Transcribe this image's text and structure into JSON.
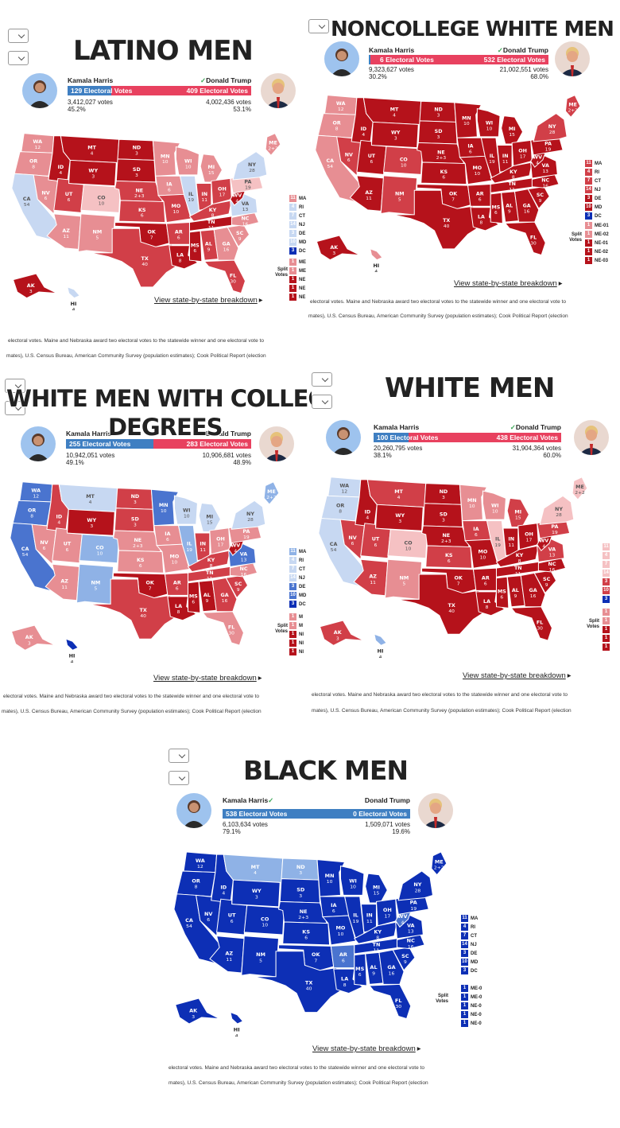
{
  "candidates": {
    "harris": "Kamala Harris",
    "trump": "Donald Trump"
  },
  "link_text": "View state-by-state breakdown",
  "footnote1": "electoral votes. Maine and Nebraska award two electoral votes to the statewide winner and one electoral vote to",
  "footnote2": "mates), U.S. Census Bureau, American Community Survey (population estimates); Cook Political Report (election",
  "split_label": "Split Votes",
  "colors": {
    "safe_r": "#b5121b",
    "likely_r": "#d13f48",
    "lean_r": "#e78e93",
    "tilt_r": "#f5c1c3",
    "tilt_d": "#c7d8f2",
    "lean_d": "#8fb2e6",
    "likely_d": "#4a74cf",
    "safe_d": "#0d2fb5"
  },
  "states": [
    {
      "ab": "WA",
      "ev": "12"
    },
    {
      "ab": "OR",
      "ev": "8"
    },
    {
      "ab": "CA",
      "ev": "54"
    },
    {
      "ab": "NV",
      "ev": "6"
    },
    {
      "ab": "ID",
      "ev": "4"
    },
    {
      "ab": "MT",
      "ev": "4"
    },
    {
      "ab": "WY",
      "ev": "3"
    },
    {
      "ab": "UT",
      "ev": "6"
    },
    {
      "ab": "AZ",
      "ev": "11"
    },
    {
      "ab": "CO",
      "ev": "10"
    },
    {
      "ab": "NM",
      "ev": "5"
    },
    {
      "ab": "ND",
      "ev": "3"
    },
    {
      "ab": "SD",
      "ev": "3"
    },
    {
      "ab": "NE",
      "ev": "2+3"
    },
    {
      "ab": "KS",
      "ev": "6"
    },
    {
      "ab": "OK",
      "ev": "7"
    },
    {
      "ab": "TX",
      "ev": "40"
    },
    {
      "ab": "MN",
      "ev": "10"
    },
    {
      "ab": "IA",
      "ev": "6"
    },
    {
      "ab": "MO",
      "ev": "10"
    },
    {
      "ab": "AR",
      "ev": "6"
    },
    {
      "ab": "LA",
      "ev": "8"
    },
    {
      "ab": "WI",
      "ev": "10"
    },
    {
      "ab": "IL",
      "ev": "19"
    },
    {
      "ab": "MI",
      "ev": "15"
    },
    {
      "ab": "IN",
      "ev": "11"
    },
    {
      "ab": "OH",
      "ev": "17"
    },
    {
      "ab": "KY",
      "ev": "8"
    },
    {
      "ab": "TN",
      "ev": "11"
    },
    {
      "ab": "MS",
      "ev": "6"
    },
    {
      "ab": "AL",
      "ev": "9"
    },
    {
      "ab": "GA",
      "ev": "16"
    },
    {
      "ab": "FL",
      "ev": "30"
    },
    {
      "ab": "SC",
      "ev": "9"
    },
    {
      "ab": "NC",
      "ev": "16"
    },
    {
      "ab": "VA",
      "ev": "13"
    },
    {
      "ab": "WV",
      "ev": "4"
    },
    {
      "ab": "PA",
      "ev": "19"
    },
    {
      "ab": "NY",
      "ev": "28"
    },
    {
      "ab": "ME",
      "ev": "2+2"
    },
    {
      "ab": "AK",
      "ev": "3"
    },
    {
      "ab": "HI",
      "ev": "4"
    }
  ],
  "panels": [
    {
      "title": "LATINO MEN",
      "harris_ev": "129 Electoral Votes",
      "trump_ev": "409 Electoral Votes",
      "harris_votes": "3,412,027 votes",
      "harris_pct": "45.2%",
      "trump_votes": "4,002,436 votes",
      "trump_pct": "53.1%",
      "harris_share": 0.24,
      "winner": "trump",
      "legend": [
        {
          "v": "11",
          "l": "MA"
        },
        {
          "v": "4",
          "l": "RI"
        },
        {
          "v": "7",
          "l": "CT"
        },
        {
          "v": "14",
          "l": "NJ"
        },
        {
          "v": "3",
          "l": "DE"
        },
        {
          "v": "10",
          "l": "MD"
        },
        {
          "v": "3",
          "l": "DC"
        }
      ],
      "split": [
        {
          "v": "1",
          "l": "ME"
        },
        {
          "v": "1",
          "l": "ME"
        },
        {
          "v": "1",
          "l": "NE"
        },
        {
          "v": "1",
          "l": "NE"
        },
        {
          "v": "1",
          "l": "NE"
        }
      ],
      "fills": {
        "WA": "lean_r",
        "OR": "lean_r",
        "CA": "tilt_d",
        "NV": "lean_r",
        "ID": "safe_r",
        "MT": "safe_r",
        "WY": "safe_r",
        "UT": "likely_r",
        "AZ": "lean_r",
        "CO": "tilt_r",
        "NM": "lean_r",
        "ND": "safe_r",
        "SD": "safe_r",
        "NE": "likely_r",
        "KS": "likely_r",
        "OK": "safe_r",
        "TX": "likely_r",
        "MN": "lean_r",
        "IA": "lean_r",
        "MO": "likely_r",
        "AR": "likely_r",
        "LA": "safe_r",
        "WI": "lean_r",
        "IL": "tilt_d",
        "MI": "lean_r",
        "IN": "likely_r",
        "OH": "likely_r",
        "KY": "likely_r",
        "TN": "safe_r",
        "MS": "safe_r",
        "AL": "likely_r",
        "GA": "lean_r",
        "FL": "likely_r",
        "SC": "lean_r",
        "NC": "lean_r",
        "VA": "tilt_d",
        "WV": "safe_r",
        "PA": "tilt_r",
        "NY": "tilt_d",
        "ME": "lean_r",
        "AK": "safe_r",
        "HI": "tilt_d"
      }
    },
    {
      "title": "NONCOLLEGE WHITE MEN",
      "harris_ev": "6 Electoral Votes",
      "trump_ev": "532 Electoral Votes",
      "harris_votes": "9,323,627 votes",
      "harris_pct": "30.2%",
      "trump_votes": "21,002,551 votes",
      "trump_pct": "68.0%",
      "harris_share": 0.011,
      "winner": "trump",
      "legend": [
        {
          "v": "11",
          "l": "MA"
        },
        {
          "v": "4",
          "l": "RI"
        },
        {
          "v": "7",
          "l": "CT"
        },
        {
          "v": "14",
          "l": "NJ"
        },
        {
          "v": "3",
          "l": "DE"
        },
        {
          "v": "10",
          "l": "MD"
        },
        {
          "v": "3",
          "l": "DC"
        }
      ],
      "split": [
        {
          "v": "1",
          "l": "ME-01"
        },
        {
          "v": "1",
          "l": "ME-02"
        },
        {
          "v": "1",
          "l": "NE-01"
        },
        {
          "v": "1",
          "l": "NE-02"
        },
        {
          "v": "1",
          "l": "NE-03"
        }
      ],
      "fills": {
        "WA": "lean_r",
        "OR": "lean_r",
        "CA": "lean_r",
        "NV": "likely_r",
        "ID": "safe_r",
        "MT": "safe_r",
        "WY": "safe_r",
        "UT": "safe_r",
        "AZ": "safe_r",
        "CO": "likely_r",
        "NM": "likely_r",
        "ND": "safe_r",
        "SD": "safe_r",
        "NE": "safe_r",
        "KS": "safe_r",
        "OK": "safe_r",
        "TX": "safe_r",
        "MN": "safe_r",
        "IA": "safe_r",
        "MO": "safe_r",
        "AR": "safe_r",
        "LA": "safe_r",
        "WI": "safe_r",
        "IL": "safe_r",
        "MI": "safe_r",
        "IN": "safe_r",
        "OH": "safe_r",
        "KY": "safe_r",
        "TN": "safe_r",
        "MS": "safe_r",
        "AL": "safe_r",
        "GA": "safe_r",
        "FL": "safe_r",
        "SC": "safe_r",
        "NC": "safe_r",
        "VA": "safe_r",
        "WV": "safe_r",
        "PA": "safe_r",
        "NY": "likely_r",
        "ME": "likely_r",
        "AK": "safe_r",
        "HI": "lean_r"
      }
    },
    {
      "title": "WHITE MEN WITH COLLEGE",
      "title2": "DEGREES",
      "harris_ev": "255 Electoral Votes",
      "trump_ev": "283 Electoral Votes",
      "harris_votes": "10,942,051 votes",
      "harris_pct": "49.1%",
      "trump_votes": "10,906,681 votes",
      "trump_pct": "48.9%",
      "harris_share": 0.474,
      "winner": "",
      "legend": [
        {
          "v": "11",
          "l": "MA"
        },
        {
          "v": "4",
          "l": "RI"
        },
        {
          "v": "7",
          "l": "CT"
        },
        {
          "v": "14",
          "l": "NJ"
        },
        {
          "v": "3",
          "l": "DE"
        },
        {
          "v": "10",
          "l": "MD"
        },
        {
          "v": "3",
          "l": "DC"
        }
      ],
      "split": [
        {
          "v": "1",
          "l": "M"
        },
        {
          "v": "1",
          "l": "M"
        },
        {
          "v": "1",
          "l": "NI"
        },
        {
          "v": "1",
          "l": "NI"
        },
        {
          "v": "1",
          "l": "NI"
        }
      ],
      "fills": {
        "WA": "likely_d",
        "OR": "likely_d",
        "CA": "likely_d",
        "NV": "lean_r",
        "ID": "likely_r",
        "MT": "tilt_d",
        "WY": "safe_r",
        "UT": "lean_r",
        "AZ": "lean_r",
        "CO": "lean_d",
        "NM": "lean_d",
        "ND": "likely_r",
        "SD": "likely_r",
        "NE": "lean_r",
        "KS": "lean_r",
        "OK": "safe_r",
        "TX": "likely_r",
        "MN": "likely_d",
        "IA": "lean_r",
        "MO": "lean_r",
        "AR": "likely_r",
        "LA": "safe_r",
        "WI": "tilt_d",
        "IL": "lean_d",
        "MI": "tilt_d",
        "IN": "likely_r",
        "OH": "lean_r",
        "KY": "likely_r",
        "TN": "likely_r",
        "MS": "safe_r",
        "AL": "safe_r",
        "GA": "likely_r",
        "FL": "lean_r",
        "SC": "likely_r",
        "NC": "lean_r",
        "VA": "likely_d",
        "WV": "safe_r",
        "PA": "lean_r",
        "NY": "tilt_d",
        "ME": "lean_d",
        "AK": "lean_r",
        "HI": "safe_d"
      }
    },
    {
      "title": "WHITE MEN",
      "harris_ev": "100 Electoral Votes",
      "trump_ev": "438 Electoral Votes",
      "harris_votes": "20,260,795 votes",
      "harris_pct": "38.1%",
      "trump_votes": "31,904,364 votes",
      "trump_pct": "60.0%",
      "harris_share": 0.186,
      "winner": "trump",
      "legend": [
        {
          "v": "11",
          "l": ""
        },
        {
          "v": "4",
          "l": ""
        },
        {
          "v": "7",
          "l": ""
        },
        {
          "v": "14",
          "l": ""
        },
        {
          "v": "3",
          "l": ""
        },
        {
          "v": "10",
          "l": ""
        },
        {
          "v": "3",
          "l": ""
        }
      ],
      "split": [
        {
          "v": "1",
          "l": ""
        },
        {
          "v": "1",
          "l": ""
        },
        {
          "v": "1",
          "l": ""
        },
        {
          "v": "1",
          "l": ""
        },
        {
          "v": "1",
          "l": ""
        }
      ],
      "fills": {
        "WA": "tilt_d",
        "OR": "tilt_d",
        "CA": "tilt_d",
        "NV": "likely_r",
        "ID": "safe_r",
        "MT": "likely_r",
        "WY": "safe_r",
        "UT": "likely_r",
        "AZ": "likely_r",
        "CO": "tilt_r",
        "NM": "lean_r",
        "ND": "safe_r",
        "SD": "safe_r",
        "NE": "safe_r",
        "KS": "likely_r",
        "OK": "safe_r",
        "TX": "safe_r",
        "MN": "lean_r",
        "IA": "likely_r",
        "MO": "safe_r",
        "AR": "safe_r",
        "LA": "safe_r",
        "WI": "lean_r",
        "IL": "tilt_r",
        "MI": "likely_r",
        "IN": "safe_r",
        "OH": "safe_r",
        "KY": "safe_r",
        "TN": "safe_r",
        "MS": "safe_r",
        "AL": "safe_r",
        "GA": "safe_r",
        "FL": "safe_r",
        "SC": "safe_r",
        "NC": "safe_r",
        "VA": "likely_r",
        "WV": "safe_r",
        "PA": "likely_r",
        "NY": "tilt_r",
        "ME": "tilt_r",
        "AK": "likely_r",
        "HI": "lean_d"
      }
    },
    {
      "title": "BLACK MEN",
      "harris_ev": "538 Electoral Votes",
      "trump_ev": "0 Electoral Votes",
      "harris_votes": "6,103,634 votes",
      "harris_pct": "79.1%",
      "trump_votes": "1,509,071 votes",
      "trump_pct": "19.6%",
      "harris_share": 1,
      "winner": "harris",
      "legend": [
        {
          "v": "11",
          "l": "MA"
        },
        {
          "v": "4",
          "l": "RI"
        },
        {
          "v": "7",
          "l": "CT"
        },
        {
          "v": "14",
          "l": "NJ"
        },
        {
          "v": "3",
          "l": "DE"
        },
        {
          "v": "10",
          "l": "MD"
        },
        {
          "v": "3",
          "l": "DC"
        }
      ],
      "split": [
        {
          "v": "1",
          "l": "ME-0"
        },
        {
          "v": "1",
          "l": "ME-0"
        },
        {
          "v": "1",
          "l": "NE-0"
        },
        {
          "v": "1",
          "l": "NE-0"
        },
        {
          "v": "1",
          "l": "NE-0"
        }
      ],
      "fills": {
        "WA": "safe_d",
        "OR": "safe_d",
        "CA": "safe_d",
        "NV": "safe_d",
        "ID": "safe_d",
        "MT": "lean_d",
        "WY": "safe_d",
        "UT": "safe_d",
        "AZ": "safe_d",
        "CO": "safe_d",
        "NM": "safe_d",
        "ND": "lean_d",
        "SD": "safe_d",
        "NE": "safe_d",
        "KS": "safe_d",
        "OK": "safe_d",
        "TX": "safe_d",
        "MN": "safe_d",
        "IA": "safe_d",
        "MO": "safe_d",
        "AR": "likely_d",
        "LA": "safe_d",
        "WI": "safe_d",
        "IL": "safe_d",
        "MI": "safe_d",
        "IN": "safe_d",
        "OH": "safe_d",
        "KY": "safe_d",
        "TN": "safe_d",
        "MS": "safe_d",
        "AL": "safe_d",
        "GA": "safe_d",
        "FL": "safe_d",
        "SC": "safe_d",
        "NC": "safe_d",
        "VA": "safe_d",
        "WV": "likely_d",
        "PA": "safe_d",
        "NY": "safe_d",
        "ME": "safe_d",
        "AK": "safe_d",
        "HI": "safe_d"
      }
    }
  ]
}
